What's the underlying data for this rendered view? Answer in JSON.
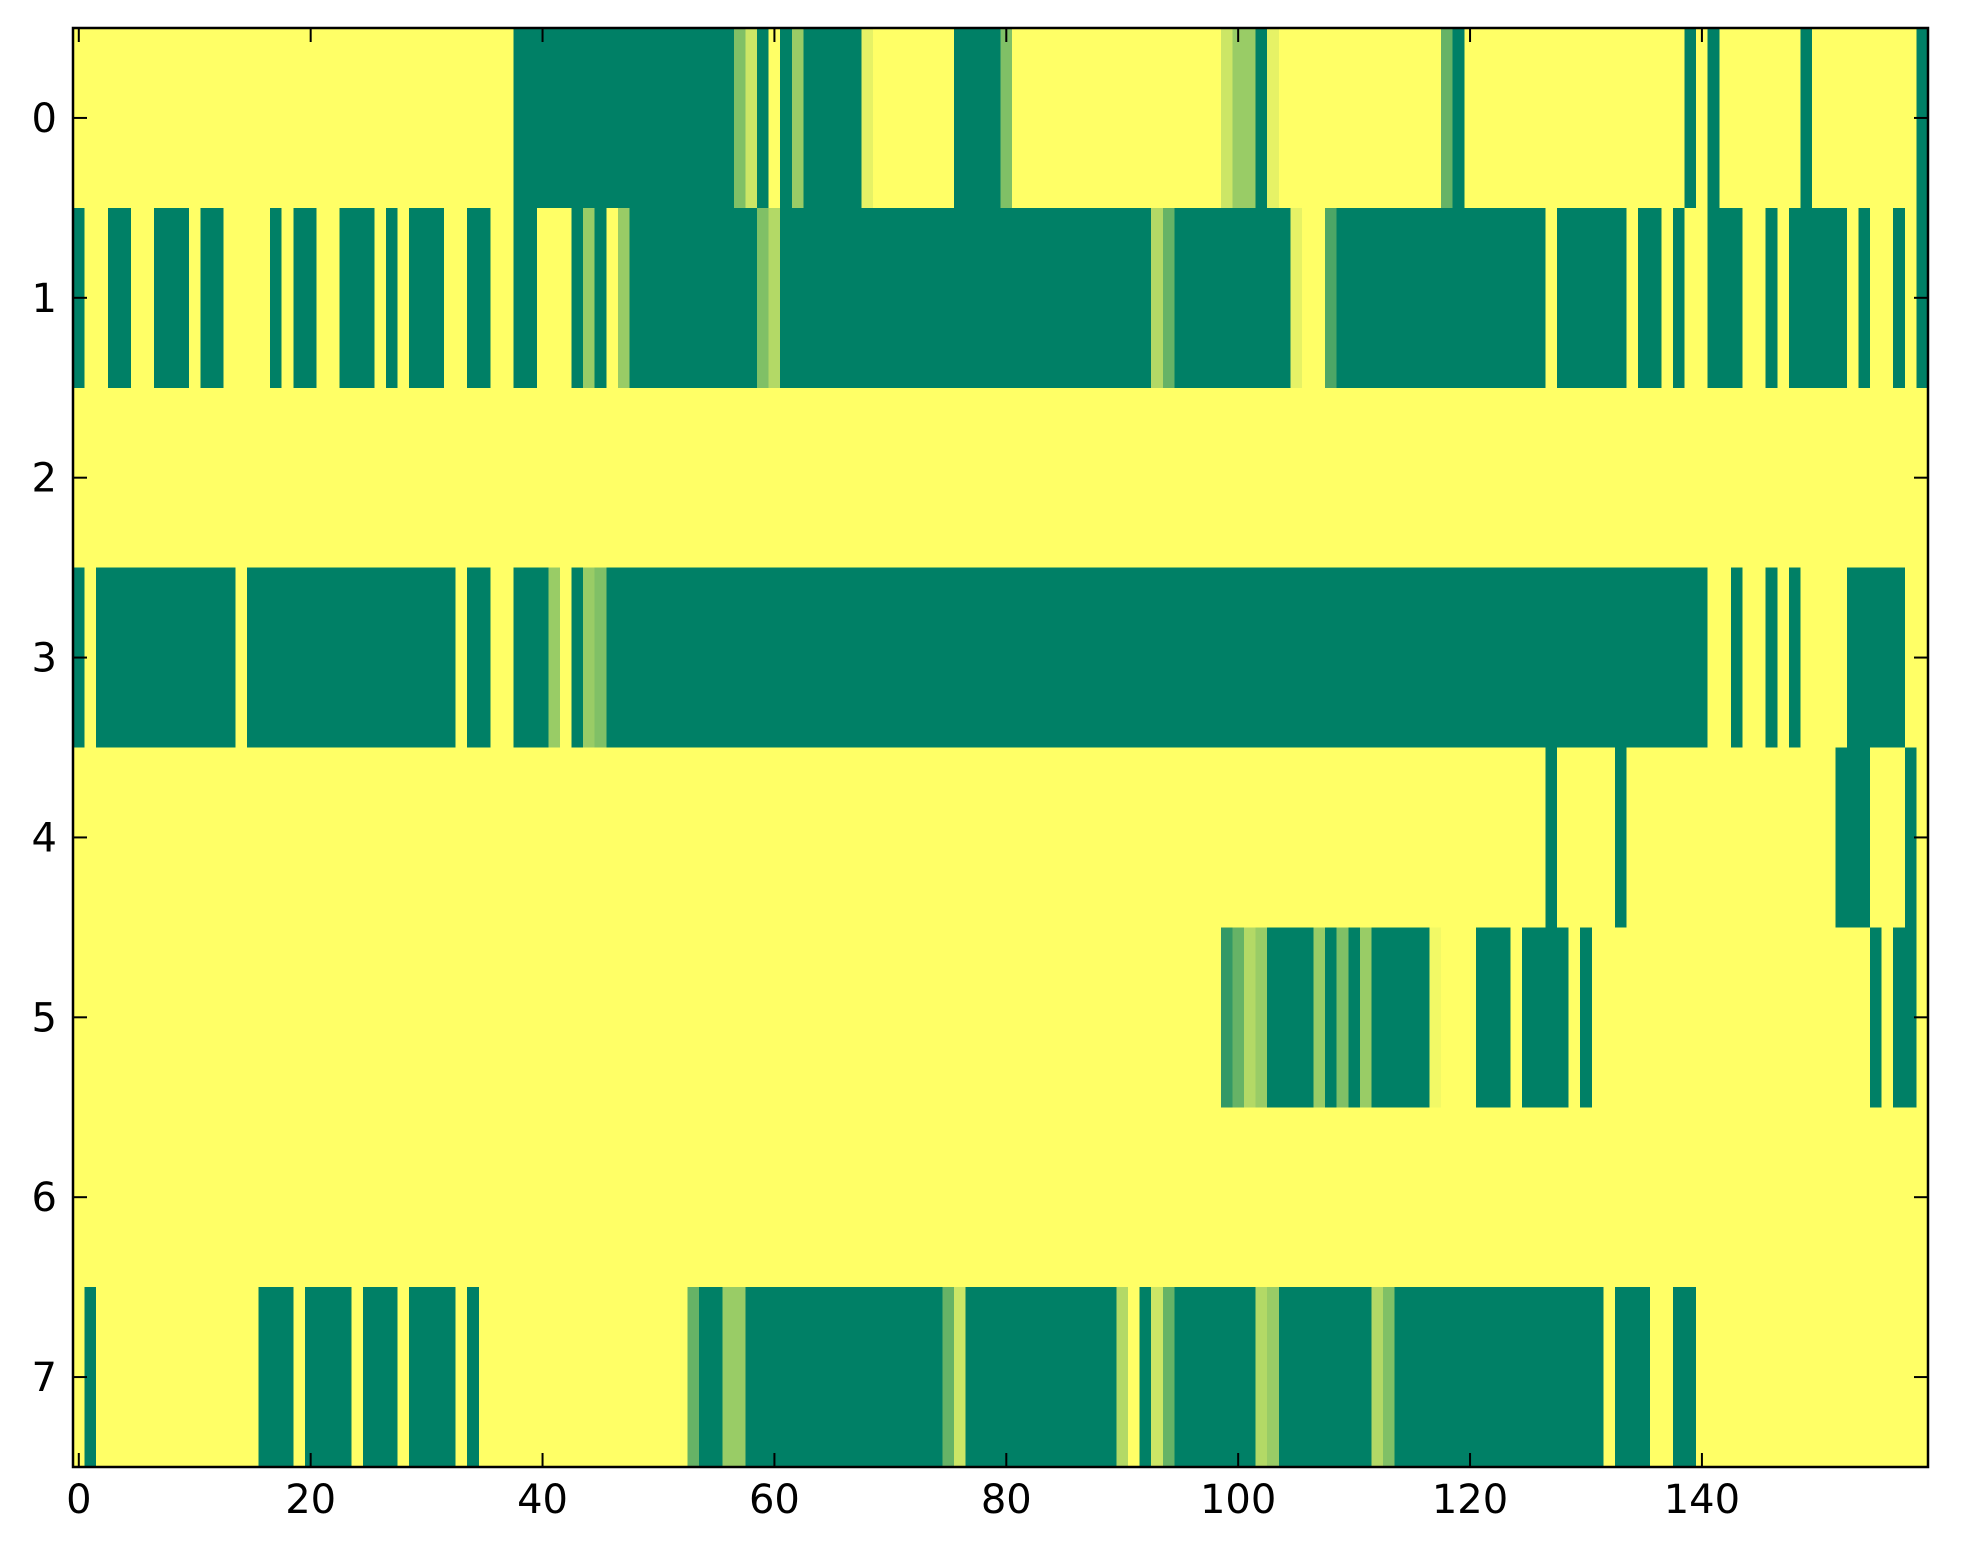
{
  "chart_data": {
    "type": "heatmap",
    "xlim": [
      -0.5,
      159.5
    ],
    "ylim": [
      7.5,
      -0.5
    ],
    "xticks": [
      0,
      20,
      40,
      60,
      80,
      100,
      120,
      140
    ],
    "yticks": [
      0,
      1,
      2,
      3,
      4,
      5,
      6,
      7
    ],
    "clim": [
      0,
      1
    ],
    "cmap_colors": [
      "#008066",
      "#ffff66"
    ],
    "values": [
      [
        1,
        1,
        1,
        1,
        1,
        1,
        1,
        1,
        1,
        1,
        1,
        1,
        1,
        1,
        1,
        1,
        1,
        1,
        1,
        1,
        1,
        1,
        1,
        1,
        1,
        1,
        1,
        1,
        1,
        1,
        1,
        1,
        1,
        1,
        1,
        1,
        1,
        1,
        0,
        0,
        0,
        0,
        0,
        0,
        0,
        0,
        0,
        0,
        0,
        0,
        0,
        0,
        0,
        0,
        0,
        0,
        0,
        0.5,
        0.8,
        0,
        1,
        0,
        0.6,
        0,
        0,
        0,
        0,
        0,
        0.9,
        1,
        1,
        1,
        1,
        1,
        1,
        1,
        0,
        0,
        0,
        0,
        0.5,
        1,
        1,
        1,
        1,
        1,
        1,
        1,
        1,
        1,
        1,
        1,
        1,
        1,
        1,
        1,
        1,
        1,
        1,
        0.8,
        0.6,
        0.6,
        0,
        0.9,
        1,
        1,
        1,
        1,
        1,
        1,
        1,
        1,
        1,
        1,
        1,
        1,
        1,
        1,
        0.4,
        0,
        1,
        1,
        1,
        1,
        1,
        1,
        1,
        1,
        1,
        1,
        1,
        1,
        1,
        1,
        1,
        1,
        1,
        1,
        1,
        0,
        1,
        0,
        1,
        1,
        1,
        1,
        1,
        1,
        1,
        0,
        1,
        1,
        1,
        1,
        1,
        1,
        1,
        1,
        1,
        0
      ],
      [
        0,
        1,
        1,
        0,
        0,
        1,
        1,
        0,
        0,
        0,
        1,
        0,
        0,
        1,
        1,
        1,
        1,
        0,
        1,
        0,
        0,
        1,
        1,
        0,
        0,
        0,
        1,
        0,
        1,
        0,
        0,
        0,
        1,
        1,
        0,
        0,
        1,
        1,
        0,
        0,
        1,
        1,
        1,
        0,
        0.6,
        0,
        1,
        0.6,
        0,
        0,
        0,
        0,
        0,
        0,
        0,
        0,
        0,
        0,
        0,
        0.5,
        0.7,
        0,
        0,
        0,
        0,
        0,
        0,
        0,
        0,
        0,
        0,
        0,
        0,
        0,
        0,
        0,
        0,
        0,
        0,
        0,
        0,
        0,
        0,
        0,
        0,
        0,
        0,
        0,
        0,
        0,
        0,
        0,
        0,
        0.7,
        0.4,
        0,
        0,
        0,
        0,
        0,
        0,
        0,
        0,
        0,
        0,
        0.9,
        1,
        1,
        0.3,
        0,
        0,
        0,
        0,
        0,
        0,
        0,
        0,
        0,
        0,
        0,
        0,
        0,
        0,
        0,
        0,
        0,
        0,
        1,
        0,
        0,
        0,
        0,
        0,
        0,
        1,
        0,
        0,
        1,
        0,
        1,
        1,
        0,
        0,
        0,
        1,
        1,
        0,
        1,
        0,
        0,
        0,
        0,
        0,
        1,
        0,
        1,
        1,
        0,
        1,
        0
      ],
      [
        1,
        1,
        1,
        1,
        1,
        1,
        1,
        1,
        1,
        1,
        1,
        1,
        1,
        1,
        1,
        1,
        1,
        1,
        1,
        1,
        1,
        1,
        1,
        1,
        1,
        1,
        1,
        1,
        1,
        1,
        1,
        1,
        1,
        1,
        1,
        1,
        1,
        1,
        1,
        1,
        1,
        1,
        1,
        1,
        1,
        1,
        1,
        1,
        1,
        1,
        1,
        1,
        1,
        1,
        1,
        1,
        1,
        1,
        1,
        1,
        1,
        1,
        1,
        1,
        1,
        1,
        1,
        1,
        1,
        1,
        1,
        1,
        1,
        1,
        1,
        1,
        1,
        1,
        1,
        1,
        1,
        1,
        1,
        1,
        1,
        1,
        1,
        1,
        1,
        1,
        1,
        1,
        1,
        1,
        1,
        1,
        1,
        1,
        1,
        1,
        1,
        1,
        1,
        1,
        1,
        1,
        1,
        1,
        1,
        1,
        1,
        1,
        1,
        1,
        1,
        1,
        1,
        1,
        1,
        1,
        1,
        1,
        1,
        1,
        1,
        1,
        1,
        1,
        1,
        1,
        1,
        1,
        1,
        1,
        1,
        1,
        1,
        1,
        1,
        1,
        1,
        1,
        1,
        1,
        1,
        1,
        1,
        1,
        1,
        1,
        1,
        1,
        1,
        1,
        1,
        1,
        1,
        1,
        1,
        1
      ],
      [
        0,
        1,
        0,
        0,
        0,
        0,
        0,
        0,
        0,
        0,
        0,
        0,
        0,
        0,
        1,
        0,
        0,
        0,
        0,
        0,
        0,
        0,
        0,
        0,
        0,
        0,
        0,
        0,
        0,
        0,
        0,
        0,
        0,
        1,
        0,
        0,
        1,
        1,
        0,
        0,
        0,
        0.6,
        1,
        0,
        0.6,
        0.5,
        0,
        0,
        0,
        0,
        0,
        0,
        0,
        0,
        0,
        0,
        0,
        0,
        0,
        0,
        0,
        0,
        0,
        0,
        0,
        0,
        0,
        0,
        0,
        0,
        0,
        0,
        0,
        0,
        0,
        0,
        0,
        0,
        0,
        0,
        0,
        0,
        0,
        0,
        0,
        0,
        0,
        0,
        0,
        0,
        0,
        0,
        0,
        0,
        0,
        0,
        0,
        0,
        0,
        0,
        0,
        0,
        0,
        0,
        0,
        0,
        0,
        0,
        0,
        0,
        0,
        0,
        0,
        0,
        0,
        0,
        0,
        0,
        0,
        0,
        0,
        0,
        0,
        0,
        0,
        0,
        0,
        0,
        0,
        0,
        0,
        0,
        0,
        0,
        0,
        0,
        0,
        0,
        0,
        0,
        0,
        1,
        1,
        0,
        1,
        1,
        0,
        1,
        0,
        1,
        1,
        1,
        1,
        0,
        0,
        0,
        0,
        0,
        1,
        1
      ],
      [
        1,
        1,
        1,
        1,
        1,
        1,
        1,
        1,
        1,
        1,
        1,
        1,
        1,
        1,
        1,
        1,
        1,
        1,
        1,
        1,
        1,
        1,
        1,
        1,
        1,
        1,
        1,
        1,
        1,
        1,
        1,
        1,
        1,
        1,
        1,
        1,
        1,
        1,
        1,
        1,
        1,
        1,
        1,
        1,
        1,
        1,
        1,
        1,
        1,
        1,
        1,
        1,
        1,
        1,
        1,
        1,
        1,
        1,
        1,
        1,
        1,
        1,
        1,
        1,
        1,
        1,
        1,
        1,
        1,
        1,
        1,
        1,
        1,
        1,
        1,
        1,
        1,
        1,
        1,
        1,
        1,
        1,
        1,
        1,
        1,
        1,
        1,
        1,
        1,
        1,
        1,
        1,
        1,
        1,
        1,
        1,
        1,
        1,
        1,
        1,
        1,
        1,
        1,
        1,
        1,
        1,
        1,
        1,
        1,
        1,
        1,
        1,
        1,
        1,
        1,
        1,
        1,
        1,
        1,
        1,
        1,
        1,
        1,
        1,
        1,
        1,
        1,
        0,
        1,
        1,
        1,
        1,
        1,
        0,
        1,
        1,
        1,
        1,
        1,
        1,
        1,
        1,
        1,
        1,
        1,
        1,
        1,
        1,
        1,
        1,
        1,
        1,
        0,
        0,
        0,
        1,
        1,
        1,
        0,
        1
      ],
      [
        1,
        1,
        1,
        1,
        1,
        1,
        1,
        1,
        1,
        1,
        1,
        1,
        1,
        1,
        1,
        1,
        1,
        1,
        1,
        1,
        1,
        1,
        1,
        1,
        1,
        1,
        1,
        1,
        1,
        1,
        1,
        1,
        1,
        1,
        1,
        1,
        1,
        1,
        1,
        1,
        1,
        1,
        1,
        1,
        1,
        1,
        1,
        1,
        1,
        1,
        1,
        1,
        1,
        1,
        1,
        1,
        1,
        1,
        1,
        1,
        1,
        1,
        1,
        1,
        1,
        1,
        1,
        1,
        1,
        1,
        1,
        1,
        1,
        1,
        1,
        1,
        1,
        1,
        1,
        1,
        1,
        1,
        1,
        1,
        1,
        1,
        1,
        1,
        1,
        1,
        1,
        1,
        1,
        1,
        1,
        1,
        1,
        1,
        1,
        0.2,
        0.4,
        0.7,
        0.6,
        0,
        0,
        0,
        0,
        0.6,
        0,
        0.5,
        0,
        0.6,
        0,
        0,
        0,
        0,
        0,
        0.95,
        1,
        1,
        1,
        0,
        0,
        0,
        1,
        0,
        0,
        0,
        0,
        1,
        0,
        1,
        1,
        1,
        1,
        1,
        1,
        1,
        1,
        1,
        1,
        1,
        1,
        1,
        1,
        1,
        1,
        1,
        1,
        1,
        1,
        1,
        1,
        1,
        1,
        0,
        1,
        0,
        0,
        1
      ],
      [
        1,
        1,
        1,
        1,
        1,
        1,
        1,
        1,
        1,
        1,
        1,
        1,
        1,
        1,
        1,
        1,
        1,
        1,
        1,
        1,
        1,
        1,
        1,
        1,
        1,
        1,
        1,
        1,
        1,
        1,
        1,
        1,
        1,
        1,
        1,
        1,
        1,
        1,
        1,
        1,
        1,
        1,
        1,
        1,
        1,
        1,
        1,
        1,
        1,
        1,
        1,
        1,
        1,
        1,
        1,
        1,
        1,
        1,
        1,
        1,
        1,
        1,
        1,
        1,
        1,
        1,
        1,
        1,
        1,
        1,
        1,
        1,
        1,
        1,
        1,
        1,
        1,
        1,
        1,
        1,
        1,
        1,
        1,
        1,
        1,
        1,
        1,
        1,
        1,
        1,
        1,
        1,
        1,
        1,
        1,
        1,
        1,
        1,
        1,
        1,
        1,
        1,
        1,
        1,
        1,
        1,
        1,
        1,
        1,
        1,
        1,
        1,
        1,
        1,
        1,
        1,
        1,
        1,
        1,
        1,
        1,
        1,
        1,
        1,
        1,
        1,
        1,
        1,
        1,
        1,
        1,
        1,
        1,
        1,
        1,
        1,
        1,
        1,
        1,
        1,
        1,
        1,
        1,
        1,
        1,
        1,
        1,
        1,
        1,
        1,
        1,
        1,
        1,
        1,
        1,
        1,
        1,
        1,
        1,
        1
      ],
      [
        1,
        0,
        1,
        1,
        1,
        1,
        1,
        1,
        1,
        1,
        1,
        1,
        1,
        1,
        1,
        1,
        0,
        0,
        0,
        1,
        0,
        0,
        0,
        0,
        1,
        0,
        0,
        0,
        1,
        0,
        0,
        0,
        0,
        1,
        0,
        1,
        1,
        1,
        1,
        1,
        1,
        1,
        1,
        1,
        1,
        1,
        1,
        1,
        1,
        1,
        1,
        1,
        1,
        0.4,
        0,
        0,
        0.6,
        0.6,
        0,
        0,
        0,
        0,
        0,
        0,
        0,
        0,
        0,
        0,
        0,
        0,
        0,
        0,
        0,
        0,
        0,
        0.4,
        0.8,
        0,
        0,
        0,
        0,
        0,
        0,
        0,
        0,
        0,
        0,
        0,
        0,
        0,
        0.7,
        1,
        0,
        0.8,
        0.4,
        0,
        0,
        0,
        0,
        0,
        0,
        0,
        0.7,
        0.6,
        0,
        0,
        0,
        0,
        0,
        0,
        0,
        0,
        0.7,
        0.5,
        0,
        0,
        0,
        0,
        0,
        0,
        0,
        0,
        0,
        0,
        0,
        0,
        0,
        0,
        0,
        0,
        0,
        0,
        1,
        0,
        0,
        0,
        1,
        1,
        0,
        0,
        1,
        1,
        1,
        1,
        1,
        1,
        1,
        1,
        1,
        1,
        1,
        1,
        1,
        1,
        1,
        1,
        1,
        1,
        1,
        1
      ]
    ]
  }
}
